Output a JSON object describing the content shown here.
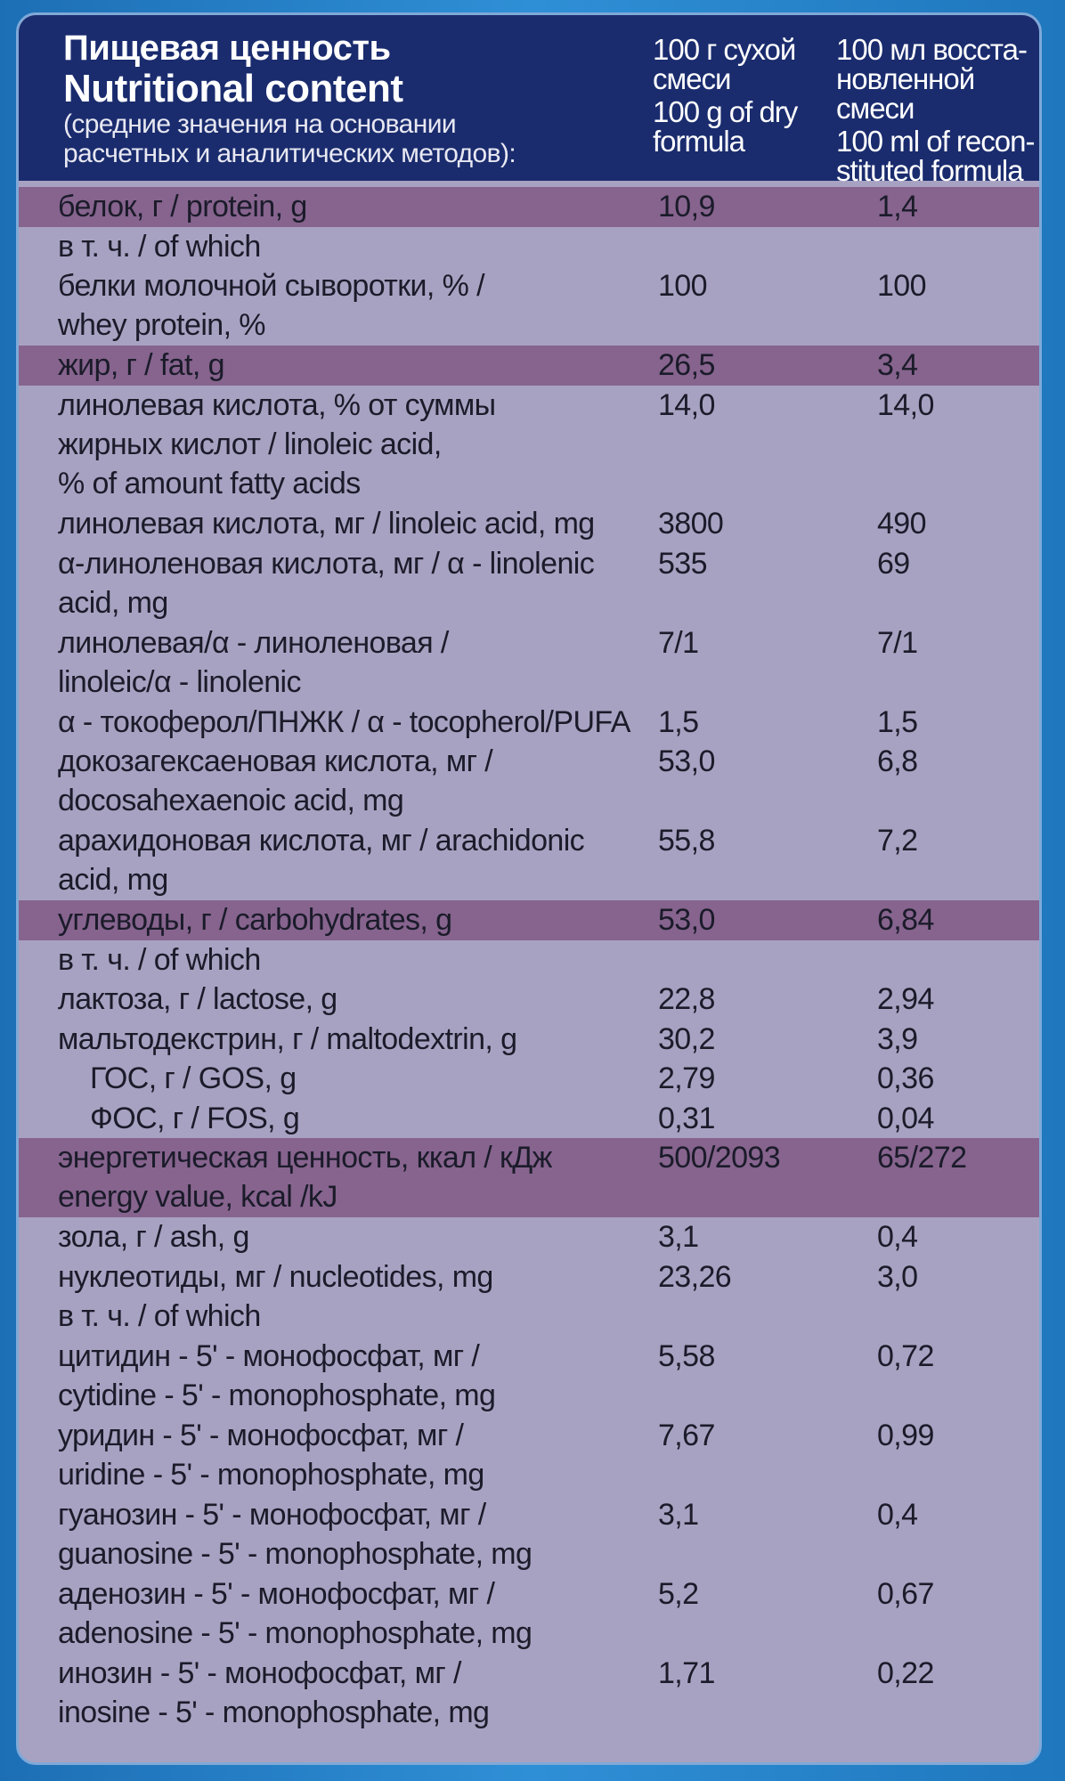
{
  "header": {
    "title_ru": "Пищевая ценность",
    "title_en": "Nutritional content",
    "note_line1": "(средние значения на основании",
    "note_line2": "расчетных и аналитических методов):",
    "col1_ru_line1": "100 г сухой",
    "col1_ru_line2": "смеси",
    "col1_en_line1": "100 g of dry",
    "col1_en_line2": "formula",
    "col2_ru_line1": "100 мл восста-",
    "col2_ru_line2": "новленной смеси",
    "col2_en_line1": "100 ml of recon-",
    "col2_en_line2": "stituted formula"
  },
  "colors": {
    "header_bg": "#1a2c6e",
    "panel_bg": "#a8a2c2",
    "highlight_row": "#86648e",
    "frame_blue": "#2a84c8"
  },
  "rows": [
    {
      "lines": [
        "белок, г / protein, g"
      ],
      "v1": "10,9",
      "v2": "1,4",
      "highlight": true
    },
    {
      "lines": [
        "в т. ч. / of which"
      ],
      "v1": "",
      "v2": ""
    },
    {
      "lines": [
        "белки молочной сыворотки, % /",
        "whey protein, %"
      ],
      "v1": "100",
      "v2": "100"
    },
    {
      "lines": [
        "жир, г / fat, g"
      ],
      "v1": "26,5",
      "v2": "3,4",
      "highlight": true
    },
    {
      "lines": [
        "линолевая кислота, % от суммы",
        "жирных кислот / linoleic acid,",
        "% of amount fatty acids"
      ],
      "v1": "14,0",
      "v2": "14,0"
    },
    {
      "lines": [
        "линолевая кислота, мг / linoleic acid, mg"
      ],
      "v1": "3800",
      "v2": "490"
    },
    {
      "lines": [
        "α-линоленовая кислота, мг / α - linolenic",
        "acid, mg"
      ],
      "v1": "535",
      "v2": "69"
    },
    {
      "lines": [
        "линолевая/α - линоленовая /",
        "linoleic/α - linolenic"
      ],
      "v1": "7/1",
      "v2": "7/1"
    },
    {
      "lines": [
        "α - токоферол/ПНЖК / α - tocopherol/PUFA"
      ],
      "v1": "1,5",
      "v2": "1,5"
    },
    {
      "lines": [
        "докозагексаеновая кислота, мг /",
        "docosahexaenoic acid, mg"
      ],
      "v1": "53,0",
      "v2": "6,8"
    },
    {
      "lines": [
        "арахидоновая кислота, мг / arachidonic",
        "acid, mg"
      ],
      "v1": "55,8",
      "v2": "7,2"
    },
    {
      "lines": [
        "углеводы, г / carbohydrates, g"
      ],
      "v1": "53,0",
      "v2": "6,84",
      "highlight": true
    },
    {
      "lines": [
        "в т. ч. / of which"
      ],
      "v1": "",
      "v2": ""
    },
    {
      "lines": [
        "лактоза, г / lactose, g"
      ],
      "v1": "22,8",
      "v2": "2,94"
    },
    {
      "lines": [
        "мальтодекстрин, г / maltodextrin, g"
      ],
      "v1": "30,2",
      "v2": "3,9"
    },
    {
      "lines": [
        "ГОС, г / GOS, g"
      ],
      "v1": "2,79",
      "v2": "0,36",
      "indent": true
    },
    {
      "lines": [
        "ФОС, г / FOS, g"
      ],
      "v1": "0,31",
      "v2": "0,04",
      "indent": true
    },
    {
      "lines": [
        "энергетическая ценность, ккал / кДж",
        "energy value, kcal /kJ"
      ],
      "v1": "500/2093",
      "v2": "65/272",
      "highlight": true
    },
    {
      "lines": [
        "зола, г / ash, g"
      ],
      "v1": "3,1",
      "v2": "0,4"
    },
    {
      "lines": [
        "нуклеотиды, мг / nucleotides, mg"
      ],
      "v1": "23,26",
      "v2": "3,0"
    },
    {
      "lines": [
        "в т. ч. / of which"
      ],
      "v1": "",
      "v2": ""
    },
    {
      "lines": [
        "цитидин - 5' - монофосфат, мг /",
        "cytidine - 5' - monophosphate, mg"
      ],
      "v1": "5,58",
      "v2": "0,72"
    },
    {
      "lines": [
        "уридин - 5' - монофосфат, мг /",
        "uridine - 5' - monophosphate, mg"
      ],
      "v1": "7,67",
      "v2": "0,99"
    },
    {
      "lines": [
        "гуанозин - 5' - монофосфат, мг /",
        "guanosine - 5' - monophosphate, mg"
      ],
      "v1": "3,1",
      "v2": "0,4"
    },
    {
      "lines": [
        "аденозин - 5' - монофосфат, мг /",
        "adenosine - 5' - monophosphate, mg"
      ],
      "v1": "5,2",
      "v2": "0,67"
    },
    {
      "lines": [
        "инозин - 5' - монофосфат, мг /",
        "inosine - 5' - monophosphate, mg"
      ],
      "v1": "1,71",
      "v2": "0,22"
    }
  ]
}
